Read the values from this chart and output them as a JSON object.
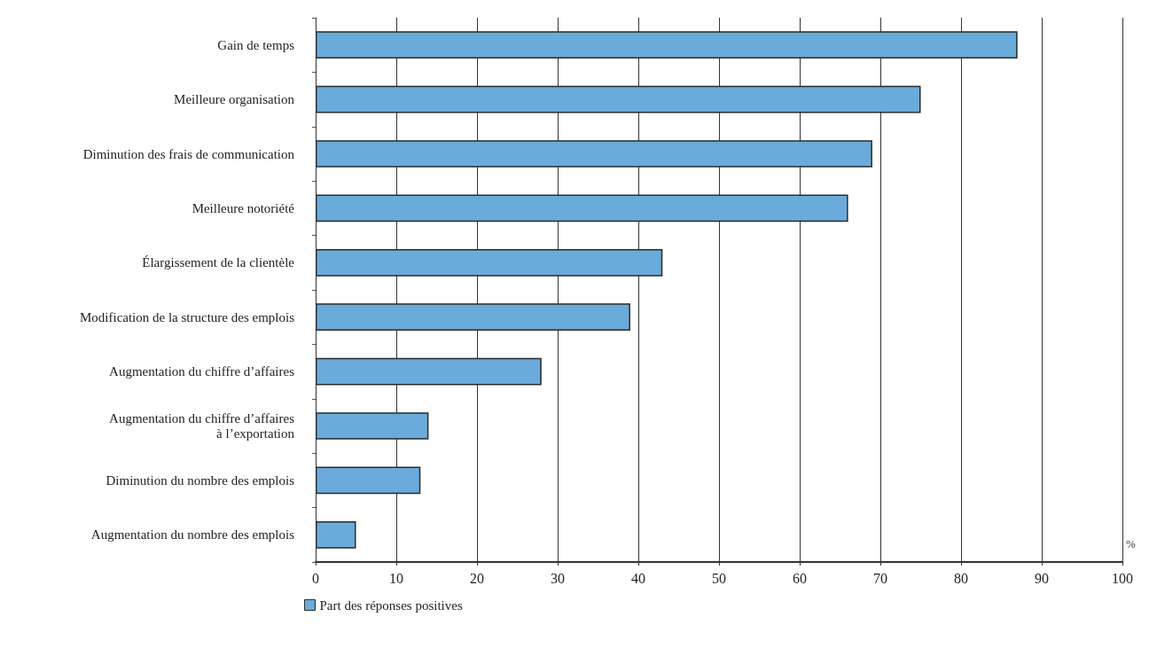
{
  "chart_data": {
    "type": "bar",
    "orientation": "horizontal",
    "xlabel": "%",
    "categories": [
      "Gain de temps",
      "Meilleure organisation",
      "Diminution des frais de communication",
      "Meilleure notoriété",
      "Élargissement de la clientèle",
      "Modification de la structure des emplois",
      "Augmentation du chiffre d’affaires",
      "Augmentation du chiffre d’affaires\nà l’exportation",
      "Diminution du nombre des emplois",
      "Augmentation du nombre des emplois"
    ],
    "series": [
      {
        "name": "Part des réponses positives",
        "color": "#6aabdb",
        "values": [
          87,
          75,
          69,
          66,
          43,
          39,
          28,
          14,
          13,
          5
        ]
      }
    ],
    "xlim": [
      0,
      100
    ],
    "xticks": [
      0,
      10,
      20,
      30,
      40,
      50,
      60,
      70,
      80,
      90,
      100
    ],
    "grid": "x",
    "legend": "bottom left"
  }
}
